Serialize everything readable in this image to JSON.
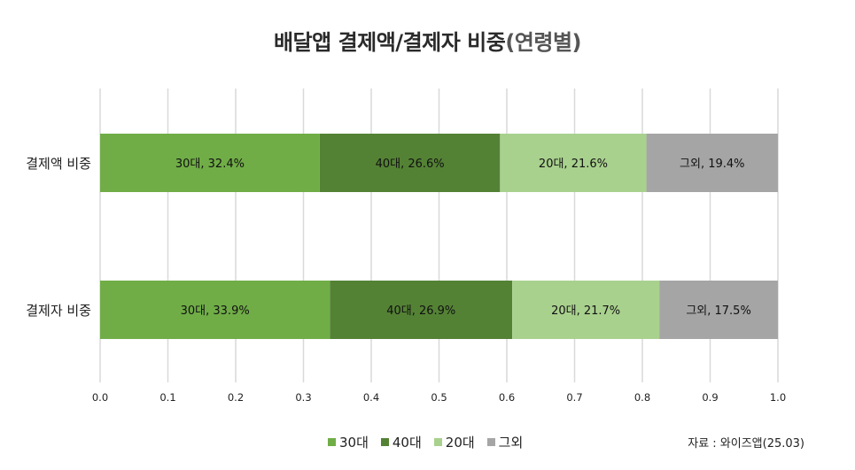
{
  "title": {
    "main": "배달앱 결제액/결제자 비중",
    "suffix": "(연령별)"
  },
  "source": "자료 : 와이즈앱(25.03)",
  "legend": {
    "items": [
      {
        "label": "30대",
        "color": "#70ad47"
      },
      {
        "label": "40대",
        "color": "#548235"
      },
      {
        "label": "20대",
        "color": "#a9d18e"
      },
      {
        "label": "그외",
        "color": "#a5a5a5"
      }
    ]
  },
  "chart_data": {
    "type": "bar",
    "orientation": "horizontal",
    "stacked": true,
    "categories": [
      "결제액 비중",
      "결제자 비중"
    ],
    "series": [
      {
        "name": "30대",
        "color": "#70ad47",
        "values": [
          0.324,
          0.339
        ],
        "labels": [
          "30대, 32.4%",
          "30대, 33.9%"
        ]
      },
      {
        "name": "40대",
        "color": "#548235",
        "values": [
          0.266,
          0.269
        ],
        "labels": [
          "40대, 26.6%",
          "40대, 26.9%"
        ]
      },
      {
        "name": "20대",
        "color": "#a9d18e",
        "values": [
          0.216,
          0.217
        ],
        "labels": [
          "20대, 21.6%",
          "20대, 21.7%"
        ]
      },
      {
        "name": "그외",
        "color": "#a5a5a5",
        "values": [
          0.194,
          0.175
        ],
        "labels": [
          "그외, 19.4%",
          "그외, 17.5%"
        ]
      }
    ],
    "xlim": [
      0,
      1
    ],
    "xticks": [
      "0.0",
      "0.1",
      "0.2",
      "0.3",
      "0.4",
      "0.5",
      "0.6",
      "0.7",
      "0.8",
      "0.9",
      "1.0"
    ],
    "grid": true,
    "legend_position": "bottom"
  }
}
